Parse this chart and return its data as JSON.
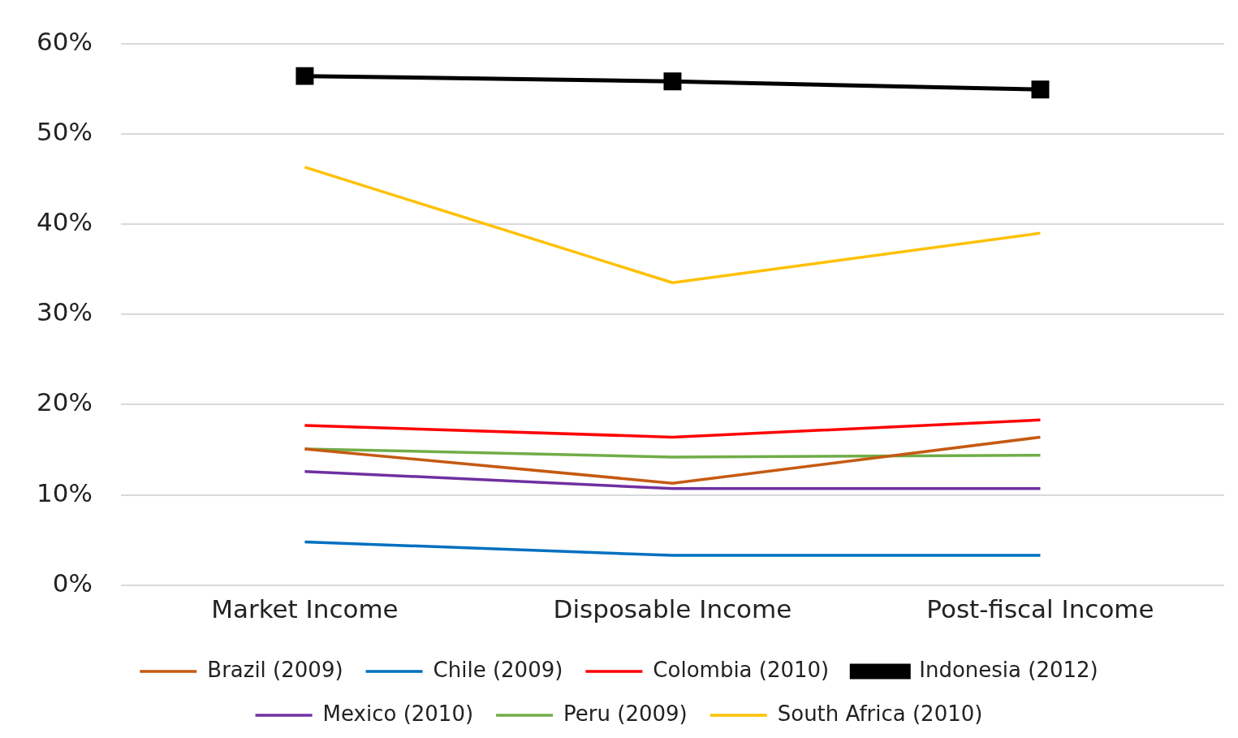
{
  "chart_data": {
    "type": "line",
    "categories": [
      "Market Income",
      "Disposable Income",
      "Post-fiscal Income"
    ],
    "ylim": [
      0,
      60
    ],
    "yticks": [
      {
        "value": 0,
        "label": "0%"
      },
      {
        "value": 10,
        "label": "10%"
      },
      {
        "value": 20,
        "label": "20%"
      },
      {
        "value": 30,
        "label": "30%"
      },
      {
        "value": 40,
        "label": "40%"
      },
      {
        "value": 50,
        "label": "50%"
      },
      {
        "value": 60,
        "label": "60%"
      }
    ],
    "grid": "y",
    "legend": "bottom",
    "marker": "none",
    "line_style": "solid",
    "series": [
      {
        "name": "Brazil (2009)",
        "color": "#c55a11",
        "values": [
          15.1,
          11.3,
          16.4
        ]
      },
      {
        "name": "Chile (2009)",
        "color": "#0070c0",
        "values": [
          4.8,
          3.3,
          3.3
        ]
      },
      {
        "name": "Colombia (2010)",
        "color": "#ff0000",
        "values": [
          17.7,
          16.4,
          18.3
        ]
      },
      {
        "name": "Indonesia (2012)",
        "color": "#000000",
        "marker": "square",
        "values": [
          56.4,
          55.8,
          54.9
        ]
      },
      {
        "name": "Mexico (2010)",
        "color": "#7030a0",
        "values": [
          12.6,
          10.7,
          10.7
        ]
      },
      {
        "name": "Peru (2009)",
        "color": "#70ad47",
        "values": [
          15.1,
          14.2,
          14.4
        ]
      },
      {
        "name": "South Africa (2010)",
        "color": "#ffc000",
        "values": [
          46.3,
          33.5,
          39.0
        ]
      }
    ]
  }
}
